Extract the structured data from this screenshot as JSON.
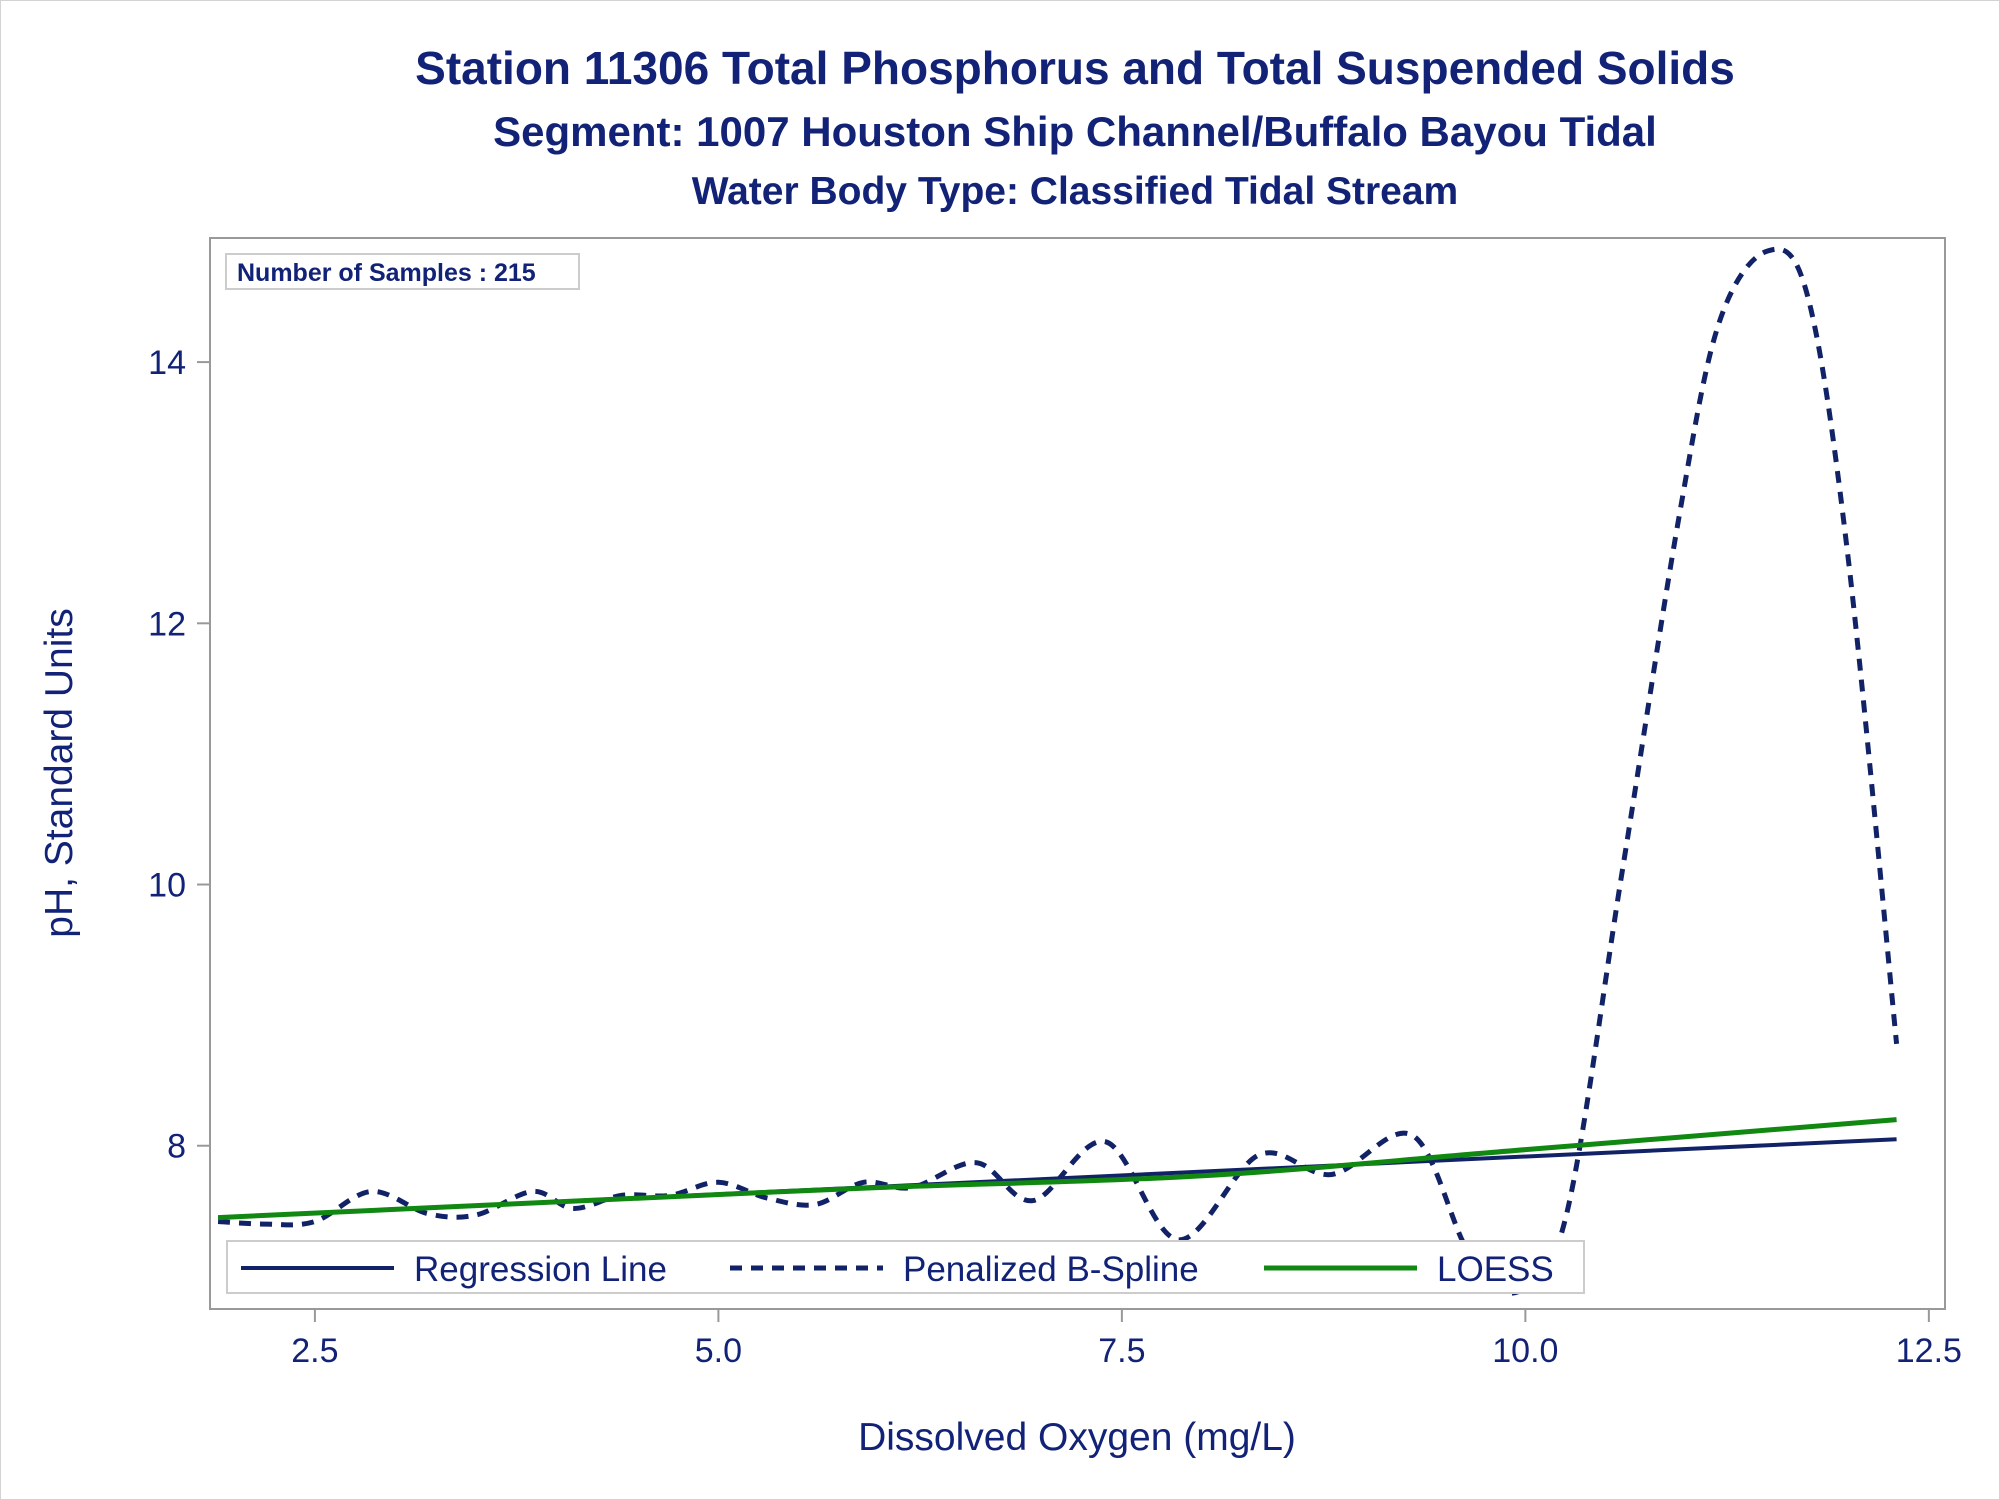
{
  "titles": {
    "title": "Station 11306  Total Phosphorus and Total Suspended Solids",
    "subtitle1": "Segment: 1007  Houston Ship Channel/Buffalo Bayou Tidal",
    "subtitle2": "Water Body Type: Classified Tidal Stream"
  },
  "inset": {
    "label": "Number of Samples : 215"
  },
  "colors": {
    "text": "#112277",
    "regression": "#112266",
    "spline": "#112266",
    "loess": "#118811",
    "axis": "#999999"
  },
  "chart_data": {
    "type": "line",
    "title": "Station 11306  Total Phosphorus and Total Suspended Solids",
    "xlabel": "Dissolved Oxygen (mg/L)",
    "ylabel": "pH, Standard Units",
    "xlim": [
      1.85,
      12.6
    ],
    "ylim": [
      6.75,
      14.95
    ],
    "xticks": [
      2.5,
      5.0,
      7.5,
      10.0,
      12.5
    ],
    "xtick_labels": [
      "2.5",
      "5.0",
      "7.5",
      "10.0",
      "12.5"
    ],
    "yticks": [
      8,
      10,
      12,
      14
    ],
    "ytick_labels": [
      "8",
      "10",
      "12",
      "14"
    ],
    "grid": false,
    "legend_position": "bottom-inside",
    "series": [
      {
        "name": "Regression Line",
        "style": "solid",
        "x": [
          1.9,
          12.3
        ],
        "y": [
          7.45,
          8.05
        ]
      },
      {
        "name": "Penalized B-Spline",
        "style": "dashed",
        "x": [
          1.9,
          2.2,
          2.5,
          2.85,
          3.2,
          3.5,
          3.85,
          4.1,
          4.4,
          4.7,
          5.0,
          5.3,
          5.6,
          5.9,
          6.2,
          6.6,
          6.95,
          7.4,
          7.85,
          8.35,
          8.8,
          9.3,
          9.65,
          9.95,
          10.25,
          10.6,
          10.95,
          11.2,
          11.5,
          11.75,
          12.0,
          12.3
        ],
        "y": [
          7.42,
          7.4,
          7.42,
          7.65,
          7.48,
          7.47,
          7.65,
          7.52,
          7.62,
          7.62,
          7.72,
          7.6,
          7.55,
          7.72,
          7.68,
          7.87,
          7.58,
          8.03,
          7.28,
          7.93,
          7.78,
          8.08,
          7.18,
          6.88,
          7.45,
          10.1,
          12.8,
          14.3,
          14.85,
          14.5,
          12.5,
          8.78
        ]
      },
      {
        "name": "LOESS",
        "style": "solid",
        "x": [
          1.9,
          4.0,
          6.0,
          8.0,
          10.0,
          12.3
        ],
        "y": [
          7.45,
          7.57,
          7.68,
          7.77,
          7.97,
          8.2
        ]
      }
    ]
  }
}
